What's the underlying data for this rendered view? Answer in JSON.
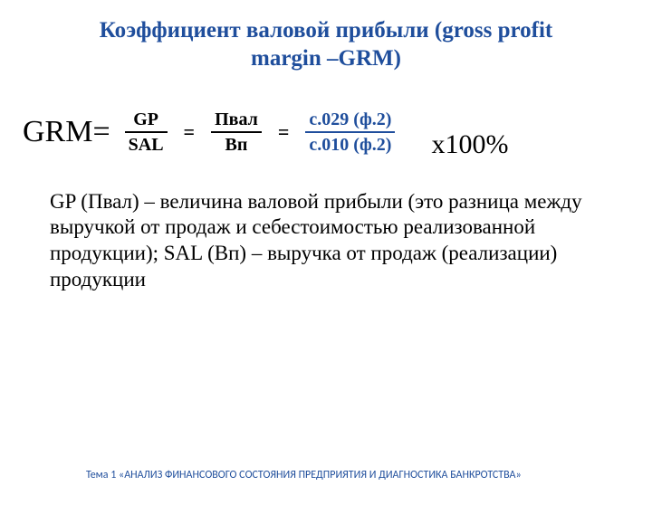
{
  "title": "Коэффициент валовой прибыли (gross profit margin –GRM)",
  "formula": {
    "label": "GRM=",
    "f1": {
      "num": "GP",
      "den": "SAL"
    },
    "eq1": "=",
    "f2": {
      "num": "Пвал",
      "den": "Вп"
    },
    "eq2": "=",
    "f3": {
      "num": "с.029 (ф.2)",
      "den": "с.010 (ф.2)"
    },
    "tail": "х100%"
  },
  "description": "GP (Пвал) – величина валовой прибыли (это разница между выручкой от продаж и себестоимостью реализованной продукции); SAL (Вп) – выручка от продаж (реализации) продукции",
  "footer": "Тема 1 «АНАЛИЗ ФИНАНСОВОГО СОСТОЯНИЯ ПРЕДПРИЯТИЯ И ДИАГНОСТИКА БАНКРОТСТВА»",
  "colors": {
    "accent": "#1f4e9c",
    "text": "#000000",
    "background": "#ffffff"
  }
}
